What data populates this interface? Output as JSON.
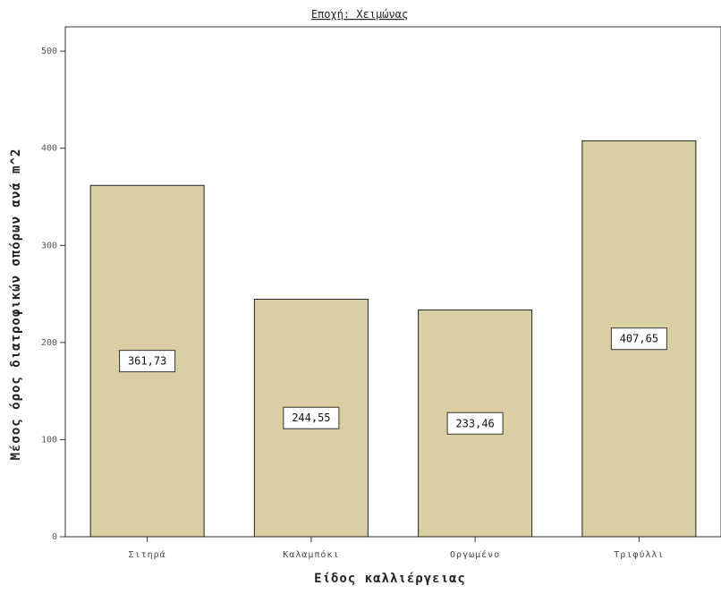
{
  "chart_data": {
    "type": "bar",
    "title": "Εποχή: Χειμώνας",
    "xlabel": "Είδος καλλιέργειας",
    "ylabel": "Μέσος όρος διατροφικών σπόρων ανά m^2",
    "categories": [
      "Σιτηρά",
      "Καλαμπόκι",
      "Οργωμένο",
      "Τριφύλλι"
    ],
    "values": [
      361.73,
      244.55,
      233.46,
      407.65
    ],
    "data_labels": [
      "361,73",
      "244,55",
      "233,46",
      "407,65"
    ],
    "ylim": [
      0,
      525
    ],
    "yticks": [
      0,
      100,
      200,
      300,
      400,
      500
    ],
    "ytick_labels": [
      "0",
      "100",
      "200",
      "300",
      "400",
      "500"
    ],
    "grid": false,
    "bar_color": "#d9cfa3",
    "bar_edge_color": "#222222"
  }
}
